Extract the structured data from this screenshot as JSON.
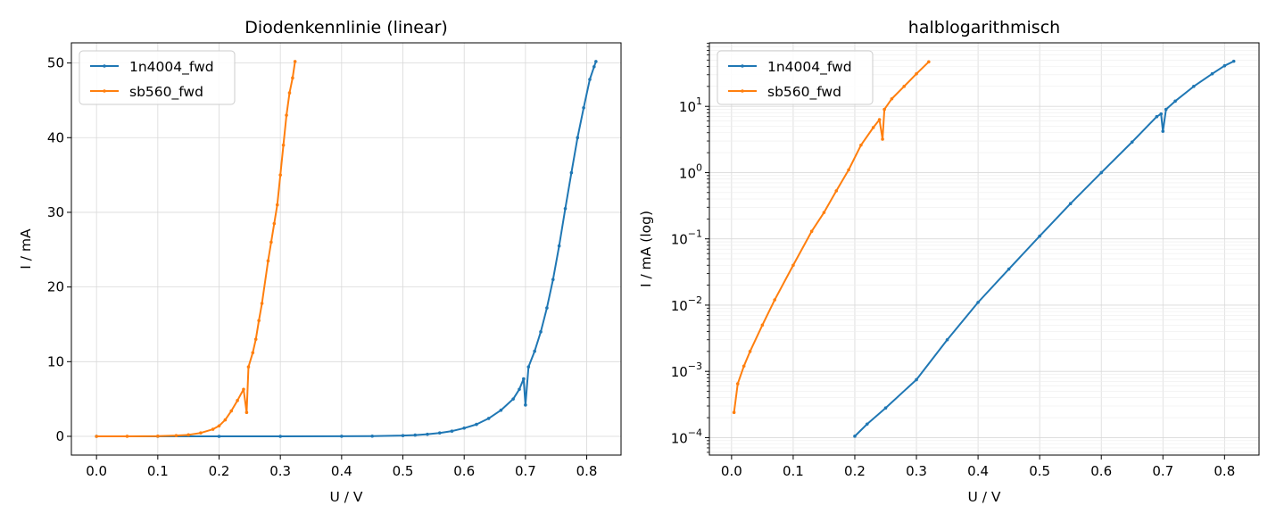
{
  "colors": {
    "s1": "#1f77b4",
    "s2": "#ff7f0e",
    "grid": "#d9d9d9"
  },
  "chart_data": [
    {
      "type": "line",
      "title": "Diodenkennlinie (linear)",
      "xlabel": "U / V",
      "ylabel": "I / mA",
      "xlim": [
        -0.041,
        0.856
      ],
      "ylim": [
        -2.51,
        52.7
      ],
      "yscale": "linear",
      "grid": true,
      "legend": "top-left",
      "xticks": [
        "0.0",
        "0.1",
        "0.2",
        "0.3",
        "0.4",
        "0.5",
        "0.6",
        "0.7",
        "0.8"
      ],
      "yticks": [
        "0",
        "10",
        "20",
        "30",
        "40",
        "50"
      ],
      "series": [
        {
          "name": "1n4004_fwd",
          "x": [
            0.0,
            0.1,
            0.2,
            0.3,
            0.4,
            0.45,
            0.5,
            0.52,
            0.54,
            0.56,
            0.58,
            0.6,
            0.62,
            0.64,
            0.66,
            0.68,
            0.69,
            0.697,
            0.7,
            0.705,
            0.715,
            0.725,
            0.735,
            0.745,
            0.755,
            0.765,
            0.775,
            0.785,
            0.795,
            0.805,
            0.812,
            0.815
          ],
          "y": [
            0.0,
            0.0,
            0.0001,
            0.001,
            0.01,
            0.03,
            0.1,
            0.17,
            0.28,
            0.45,
            0.7,
            1.1,
            1.6,
            2.4,
            3.5,
            5.0,
            6.3,
            7.7,
            4.2,
            9.3,
            11.4,
            14.0,
            17.2,
            21.0,
            25.5,
            30.5,
            35.3,
            40.0,
            44.0,
            47.8,
            49.5,
            50.2
          ]
        },
        {
          "name": "sb560_fwd",
          "x": [
            0.0,
            0.05,
            0.1,
            0.13,
            0.15,
            0.17,
            0.19,
            0.2,
            0.21,
            0.22,
            0.23,
            0.24,
            0.245,
            0.248,
            0.255,
            0.26,
            0.265,
            0.27,
            0.28,
            0.285,
            0.29,
            0.295,
            0.3,
            0.305,
            0.31,
            0.315,
            0.32,
            0.324
          ],
          "y": [
            0.0,
            0.003,
            0.03,
            0.1,
            0.2,
            0.45,
            0.95,
            1.4,
            2.2,
            3.4,
            4.8,
            6.3,
            3.2,
            9.3,
            11.2,
            13.0,
            15.5,
            17.8,
            23.5,
            26.0,
            28.5,
            31.0,
            35.0,
            39.0,
            43.0,
            46.0,
            48.0,
            50.2
          ]
        }
      ]
    },
    {
      "type": "line",
      "title": "halblogarithmisch",
      "xlabel": "U / V",
      "ylabel": "I / mA (log)",
      "xlim": [
        -0.036,
        0.856
      ],
      "ylim": [
        5.45e-05,
        91.0
      ],
      "yscale": "log",
      "grid": true,
      "legend": "top-left",
      "xticks": [
        "0.0",
        "0.1",
        "0.2",
        "0.3",
        "0.4",
        "0.5",
        "0.6",
        "0.7",
        "0.8"
      ],
      "yticks": [
        "10^-4",
        "10^-3",
        "10^-2",
        "10^-1",
        "10^0",
        "10^1"
      ],
      "series": [
        {
          "name": "1n4004_fwd",
          "x": [
            0.2,
            0.22,
            0.25,
            0.3,
            0.35,
            0.4,
            0.45,
            0.5,
            0.55,
            0.6,
            0.65,
            0.69,
            0.697,
            0.7,
            0.705,
            0.72,
            0.75,
            0.78,
            0.8,
            0.815
          ],
          "y": [
            0.000105,
            0.00016,
            0.00028,
            0.00075,
            0.003,
            0.011,
            0.035,
            0.11,
            0.34,
            1.0,
            2.9,
            7.0,
            7.7,
            4.2,
            9.0,
            12.0,
            20.0,
            31.0,
            41.0,
            48.0
          ]
        },
        {
          "name": "sb560_fwd",
          "x": [
            0.004,
            0.01,
            0.02,
            0.03,
            0.05,
            0.07,
            0.1,
            0.13,
            0.15,
            0.17,
            0.19,
            0.21,
            0.23,
            0.24,
            0.245,
            0.248,
            0.26,
            0.28,
            0.3,
            0.32
          ],
          "y": [
            0.00024,
            0.00065,
            0.0012,
            0.002,
            0.005,
            0.012,
            0.04,
            0.13,
            0.25,
            0.53,
            1.1,
            2.6,
            4.8,
            6.3,
            3.2,
            9.0,
            13.0,
            20.0,
            31.0,
            47.0
          ]
        }
      ]
    }
  ]
}
